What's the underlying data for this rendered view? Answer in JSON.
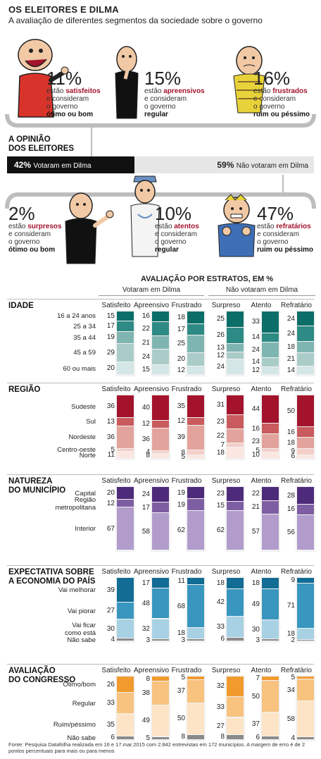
{
  "title": "OS ELEITORES E DILMA",
  "subtitle": "A avaliação de diferentes segmentos da sociedade sobre o governo",
  "top_groups": [
    {
      "pct": "11%",
      "line1": "estão",
      "keyword": "satisfeitos",
      "line2": "e consideram",
      "line3": "o governo",
      "rating": "ótimo ou bom"
    },
    {
      "pct": "15%",
      "line1": "estão",
      "keyword": "apreensivos",
      "line2": "e consideram",
      "line3": "o governo",
      "rating": "regular"
    },
    {
      "pct": "16%",
      "line1": "estão",
      "keyword": "frustrados",
      "line2": "e consideram",
      "line3": "o governo",
      "rating": "ruim ou péssimo"
    }
  ],
  "opinion_title": "A OPINIÃO\nDOS ELEITORES",
  "voted": {
    "pct": "42%",
    "label": "Votaram em Dilma",
    "value": 42
  },
  "not_voted": {
    "pct": "59%",
    "label": "Não votaram em Dilma",
    "value": 59
  },
  "bottom_groups": [
    {
      "pct": "2%",
      "line1": "estão",
      "keyword": "surpresos",
      "line2": "e consideram",
      "line3": "o governo",
      "rating": "ótimo ou bom"
    },
    {
      "pct": "10%",
      "line1": "estão",
      "keyword": "atentos",
      "line2": "e consideram",
      "line3": "o governo",
      "rating": "regular"
    },
    {
      "pct": "47%",
      "line1": "estão",
      "keyword": "refratários",
      "line2": "e consideram",
      "line3": "o governo",
      "rating": "ruim ou péssimo"
    }
  ],
  "strata_title": "AVALIAÇÃO POR ESTRATOS, EM %",
  "group_headers": [
    "Votaram em Dilma",
    "Não votaram em Dilma"
  ],
  "footer": "Fonte: Pesquisa Datafolha realizada em 16 e 17.mar.2015 com 2.842 entrevistas em 172 municípios. A margem de erro é de 2 pontos percentuais para mais ou para menos",
  "colors": {
    "title_red": "#a3132c",
    "black_bar": "#111111",
    "grey_bar": "#e6e6e6",
    "idade": [
      "#0c6e69",
      "#2d8a84",
      "#7fb5b1",
      "#a9ccc9",
      "#d4e6e5"
    ],
    "regiao": [
      "#a3132c",
      "#c95a5d",
      "#e2a39c",
      "#f3cfc8",
      "#fbe6e1"
    ],
    "natureza": [
      "#4e2a7a",
      "#7e5ea3",
      "#b19ccc"
    ],
    "economia": [
      "#126c94",
      "#3996be",
      "#a8d1e4",
      "#8a8a8a"
    ],
    "congresso": [
      "#f19a2e",
      "#f8c27f",
      "#fde4c6",
      "#8a8a8a"
    ]
  },
  "chart_data": {
    "type": "stacked-bar",
    "columns": [
      "Satisfeito",
      "Apreensivo",
      "Frustrado",
      "Surpreso",
      "Atento",
      "Refratário"
    ],
    "sections": [
      {
        "title": "IDADE",
        "rows": [
          "16 a 24 anos",
          "25 a 34",
          "35 a 44",
          "45 a 59",
          "60 ou mais"
        ],
        "values": [
          [
            15,
            17,
            19,
            29,
            20
          ],
          [
            16,
            22,
            21,
            24,
            15
          ],
          [
            18,
            17,
            25,
            20,
            12
          ],
          [
            25,
            26,
            13,
            12,
            24
          ],
          [
            33,
            14,
            24,
            14,
            12
          ],
          [
            24,
            24,
            18,
            21,
            14
          ]
        ]
      },
      {
        "title": "REGIÃO",
        "rows": [
          "Sudeste",
          "Sul",
          "Nordeste",
          "Centro-oeste",
          "Norte"
        ],
        "values": [
          [
            36,
            13,
            36,
            5,
            11
          ],
          [
            40,
            12,
            36,
            4,
            8
          ],
          [
            35,
            12,
            39,
            8,
            5
          ],
          [
            31,
            23,
            22,
            7,
            18
          ],
          [
            44,
            16,
            23,
            5,
            10
          ],
          [
            50,
            16,
            18,
            9,
            6
          ]
        ]
      },
      {
        "title": "NATUREZA\nDO MUNICÍPIO",
        "rows": [
          "Capital",
          "Região\nmetropolitana",
          "Interior"
        ],
        "values": [
          [
            20,
            12,
            67
          ],
          [
            24,
            17,
            58
          ],
          [
            19,
            19,
            62
          ],
          [
            23,
            15,
            62
          ],
          [
            22,
            21,
            57
          ],
          [
            28,
            16,
            56
          ]
        ]
      },
      {
        "title": "EXPECTATIVA SOBRE\nA ECONOMIA DO PAÍS",
        "rows": [
          "Vai melhorar",
          "Vai piorar",
          "Vai ficar\ncomo está",
          "Não sabe"
        ],
        "values": [
          [
            39,
            27,
            30,
            4
          ],
          [
            17,
            48,
            32,
            3
          ],
          [
            11,
            68,
            18,
            3
          ],
          [
            18,
            42,
            33,
            6
          ],
          [
            18,
            49,
            30,
            3
          ],
          [
            9,
            71,
            18,
            2
          ]
        ]
      },
      {
        "title": "AVALIAÇÃO\nDO CONGRESSO",
        "rows": [
          "Ótimo/bom",
          "Regular",
          "Ruim/péssimo",
          "Não sabe"
        ],
        "values": [
          [
            26,
            33,
            35,
            6
          ],
          [
            8,
            38,
            49,
            5
          ],
          [
            5,
            37,
            50,
            8
          ],
          [
            32,
            33,
            27,
            8
          ],
          [
            7,
            50,
            37,
            6
          ],
          [
            5,
            34,
            58,
            4
          ]
        ]
      }
    ]
  }
}
